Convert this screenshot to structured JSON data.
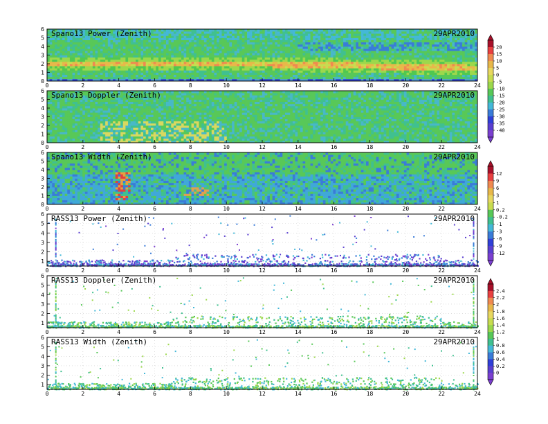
{
  "date_label": "29APR2010",
  "x_ticks": [
    "0",
    "2",
    "4",
    "6",
    "8",
    "10",
    "12",
    "14",
    "16",
    "18",
    "20",
    "22",
    "24"
  ],
  "colorbars": [
    {
      "id": "cb-power",
      "labels": [
        "20",
        "15",
        "10",
        "5",
        "0",
        "-5",
        "-10",
        "-15",
        "-20",
        "-25",
        "-30",
        "-35",
        "-40"
      ]
    },
    {
      "id": "cb-width",
      "labels": [
        "12",
        "9",
        "6",
        "3",
        "1",
        "0.2",
        "-0.2",
        "-1",
        "-3",
        "-6",
        "-9",
        "-12"
      ]
    },
    {
      "id": "cb-rass",
      "labels": [
        "2.4",
        "2.2",
        "2",
        "1.8",
        "1.6",
        "1.4",
        "1.2",
        "1",
        "0.8",
        "0.6",
        "0.4",
        "0.2",
        "0"
      ]
    }
  ],
  "chart_data": [
    {
      "type": "heatmap",
      "title": "Spano13 Power (Zenith)",
      "date": "29APR2010",
      "x_range": [
        0,
        24
      ],
      "y_range": [
        0,
        6
      ],
      "y_ticks": [
        "0",
        "1",
        "2",
        "3",
        "4",
        "5",
        "6"
      ],
      "color_scale": "cb-power",
      "value_range": [
        -40,
        20
      ],
      "features": "strong band near 2 km height across the day, decreasing to ~1.5 km late in day"
    },
    {
      "type": "heatmap",
      "title": "Spano13 Doppler (Zenith)",
      "date": "29APR2010",
      "x_range": [
        0,
        24
      ],
      "y_range": [
        0,
        6
      ],
      "y_ticks": [
        "0",
        "1",
        "2",
        "3",
        "4",
        "5",
        "6"
      ],
      "color_scale": "cb-power"
    },
    {
      "type": "heatmap",
      "title": "Spano13 Width (Zenith)",
      "date": "29APR2010",
      "x_range": [
        0,
        24
      ],
      "y_range": [
        0,
        6
      ],
      "y_ticks": [
        "0",
        "1",
        "2",
        "3",
        "4",
        "5",
        "6"
      ],
      "color_scale": "cb-width",
      "value_range": [
        -12,
        12
      ]
    },
    {
      "type": "scatter",
      "title": "RASS13 Power (Zenith)",
      "date": "29APR2010",
      "x_range": [
        0,
        24
      ],
      "y_range": [
        0.5,
        6
      ],
      "y_ticks": [
        "1",
        "2",
        "3",
        "4",
        "5",
        "6"
      ],
      "color_scale": "cb-width"
    },
    {
      "type": "scatter",
      "title": "RASS13 Doppler (Zenith)",
      "date": "29APR2010",
      "x_range": [
        0,
        24
      ],
      "y_range": [
        0.5,
        6
      ],
      "y_ticks": [
        "1",
        "2",
        "3",
        "4",
        "5",
        "6"
      ],
      "color_scale": "cb-rass",
      "value_range": [
        0,
        2.4
      ]
    },
    {
      "type": "scatter",
      "title": "RASS13 Width (Zenith)",
      "date": "29APR2010",
      "x_range": [
        0,
        24
      ],
      "y_range": [
        0.5,
        6
      ],
      "y_ticks": [
        "1",
        "2",
        "3",
        "4",
        "5",
        "6"
      ],
      "color_scale": "cb-rass"
    }
  ]
}
